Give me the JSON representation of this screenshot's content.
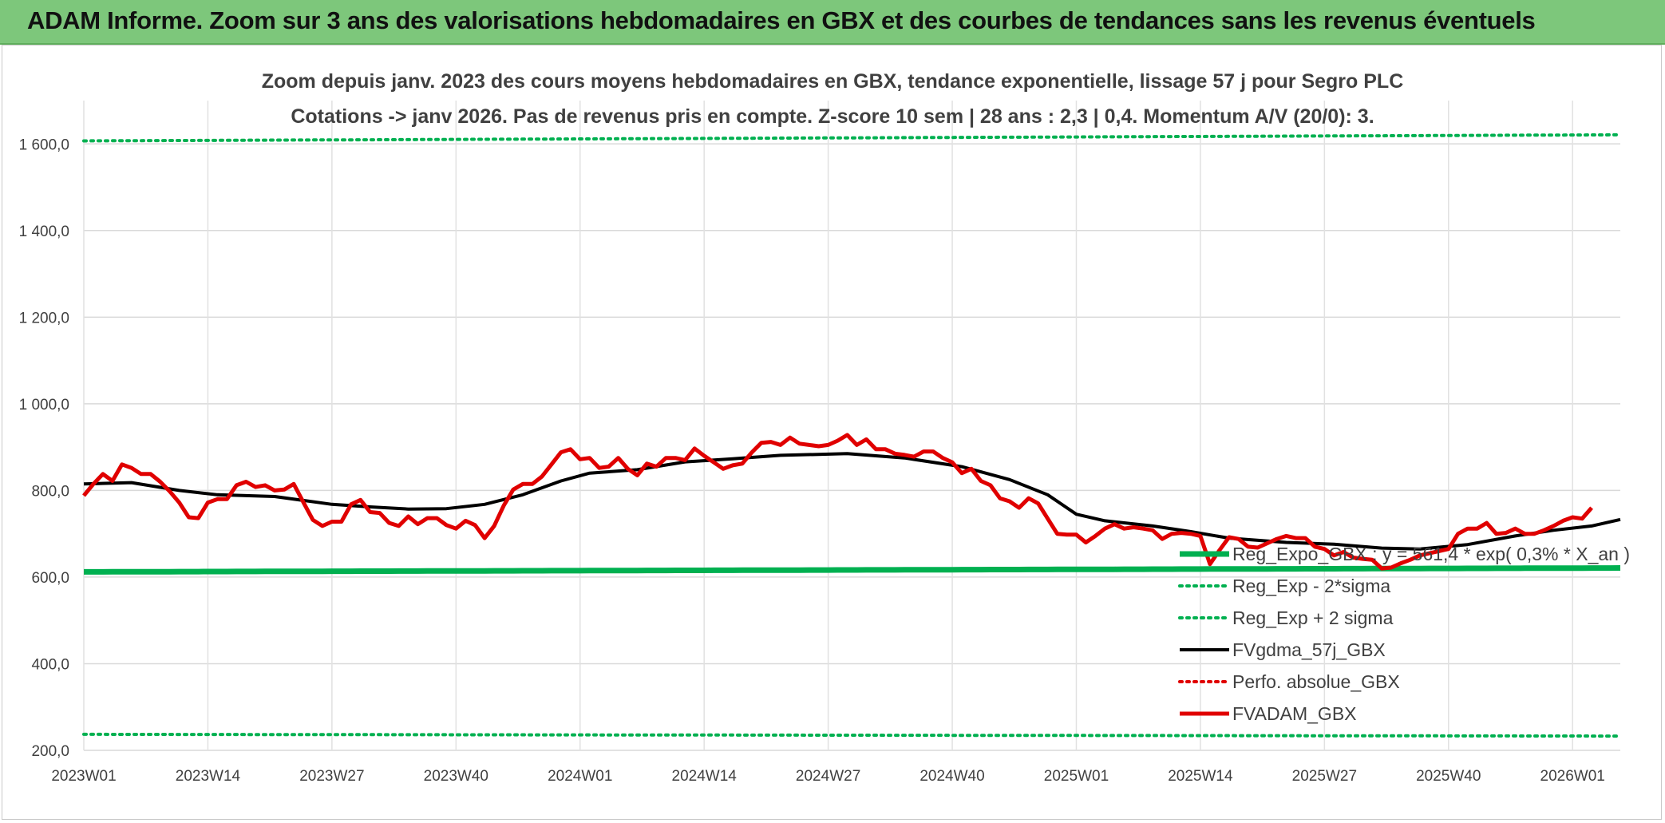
{
  "header": {
    "title": "ADAM Informe. Zoom sur 3 ans des valorisations hebdomadaires en GBX et des courbes de tendances sans les revenus éventuels"
  },
  "chart_data": {
    "type": "line",
    "title_line1": "Zoom depuis janv. 2023 des cours moyens hebdomadaires en GBX, tendance exponentielle, lissage 57 j pour Segro PLC",
    "title_line2": "Cotations -> janv 2026. Pas de revenus pris en compte. Z-score 10 sem | 28 ans : 2,3 | 0,4. Momentum A/V (20/0): 3.",
    "ylim": [
      200,
      1700
    ],
    "y_ticks": [
      200,
      400,
      600,
      800,
      1000,
      1200,
      1400,
      1600
    ],
    "y_tick_labels": [
      "200,0",
      "400,0",
      "600,0",
      "800,0",
      "1 000,0",
      "1 200,0",
      "1 400,0",
      "1 600,0"
    ],
    "x_count": 162,
    "x_tick_index": [
      0,
      13,
      26,
      39,
      52,
      65,
      78,
      91,
      104,
      117,
      130,
      143,
      156
    ],
    "x_tick_labels": [
      "2023W01",
      "2023W14",
      "2023W27",
      "2023W40",
      "2024W01",
      "2024W14",
      "2024W27",
      "2024W40",
      "2025W01",
      "2025W14",
      "2025W27",
      "2025W40",
      "2026W01"
    ],
    "series": [
      {
        "name": "Reg_Expo_GBX : y = 561,4 * exp( 0,3% * X_an )",
        "style": "solid-thick",
        "color": "#00b050",
        "from": 612,
        "to": 621
      },
      {
        "name": "Reg_Exp - 2*sigma",
        "style": "dotted",
        "color": "#00b050",
        "from": 237,
        "to": 233
      },
      {
        "name": "Reg_Exp + 2 sigma",
        "style": "dotted",
        "color": "#00b050",
        "from": 1607,
        "to": 1621
      },
      {
        "name": "FVgdma_57j_GBX",
        "style": "solid",
        "color": "#000000",
        "points": [
          [
            0,
            815
          ],
          [
            5,
            818
          ],
          [
            10,
            800
          ],
          [
            14,
            790
          ],
          [
            20,
            786
          ],
          [
            26,
            768
          ],
          [
            30,
            762
          ],
          [
            34,
            757
          ],
          [
            38,
            758
          ],
          [
            42,
            768
          ],
          [
            46,
            790
          ],
          [
            50,
            822
          ],
          [
            53,
            840
          ],
          [
            58,
            848
          ],
          [
            63,
            866
          ],
          [
            68,
            873
          ],
          [
            73,
            881
          ],
          [
            80,
            885
          ],
          [
            86,
            875
          ],
          [
            92,
            855
          ],
          [
            97,
            825
          ],
          [
            101,
            790
          ],
          [
            104,
            745
          ],
          [
            107,
            730
          ],
          [
            112,
            718
          ],
          [
            116,
            705
          ],
          [
            120,
            690
          ],
          [
            126,
            680
          ],
          [
            131,
            676
          ],
          [
            136,
            667
          ],
          [
            140,
            665
          ],
          [
            145,
            675
          ],
          [
            150,
            695
          ],
          [
            154,
            708
          ],
          [
            158,
            718
          ],
          [
            161,
            733
          ]
        ]
      },
      {
        "name": "Perfo. absolue_GBX",
        "style": "dotted",
        "color": "#e00000",
        "points": []
      },
      {
        "name": "FVADAM_GBX",
        "style": "solid-thick",
        "color": "#e00000",
        "points": [
          [
            0,
            788
          ],
          [
            1,
            815
          ],
          [
            2,
            838
          ],
          [
            3,
            822
          ],
          [
            4,
            860
          ],
          [
            5,
            852
          ],
          [
            6,
            838
          ],
          [
            7,
            838
          ],
          [
            8,
            820
          ],
          [
            9,
            798
          ],
          [
            10,
            772
          ],
          [
            11,
            738
          ],
          [
            12,
            736
          ],
          [
            13,
            772
          ],
          [
            14,
            780
          ],
          [
            15,
            780
          ],
          [
            16,
            812
          ],
          [
            17,
            820
          ],
          [
            18,
            808
          ],
          [
            19,
            812
          ],
          [
            20,
            800
          ],
          [
            21,
            802
          ],
          [
            22,
            815
          ],
          [
            23,
            773
          ],
          [
            24,
            732
          ],
          [
            25,
            718
          ],
          [
            26,
            728
          ],
          [
            27,
            728
          ],
          [
            28,
            768
          ],
          [
            29,
            778
          ],
          [
            30,
            750
          ],
          [
            31,
            748
          ],
          [
            32,
            725
          ],
          [
            33,
            718
          ],
          [
            34,
            740
          ],
          [
            35,
            722
          ],
          [
            36,
            736
          ],
          [
            37,
            736
          ],
          [
            38,
            720
          ],
          [
            39,
            712
          ],
          [
            40,
            730
          ],
          [
            41,
            720
          ],
          [
            42,
            690
          ],
          [
            43,
            718
          ],
          [
            44,
            765
          ],
          [
            45,
            802
          ],
          [
            46,
            815
          ],
          [
            47,
            815
          ],
          [
            48,
            832
          ],
          [
            49,
            860
          ],
          [
            50,
            888
          ],
          [
            51,
            895
          ],
          [
            52,
            872
          ],
          [
            53,
            875
          ],
          [
            54,
            852
          ],
          [
            55,
            855
          ],
          [
            56,
            875
          ],
          [
            57,
            850
          ],
          [
            58,
            835
          ],
          [
            59,
            862
          ],
          [
            60,
            855
          ],
          [
            61,
            875
          ],
          [
            62,
            875
          ],
          [
            63,
            870
          ],
          [
            64,
            897
          ],
          [
            65,
            880
          ],
          [
            66,
            865
          ],
          [
            67,
            850
          ],
          [
            68,
            858
          ],
          [
            69,
            862
          ],
          [
            70,
            888
          ],
          [
            71,
            910
          ],
          [
            72,
            912
          ],
          [
            73,
            905
          ],
          [
            74,
            922
          ],
          [
            75,
            908
          ],
          [
            76,
            905
          ],
          [
            77,
            902
          ],
          [
            78,
            905
          ],
          [
            79,
            915
          ],
          [
            80,
            928
          ],
          [
            81,
            905
          ],
          [
            82,
            918
          ],
          [
            83,
            895
          ],
          [
            84,
            895
          ],
          [
            85,
            885
          ],
          [
            86,
            882
          ],
          [
            87,
            878
          ],
          [
            88,
            890
          ],
          [
            89,
            890
          ],
          [
            90,
            875
          ],
          [
            91,
            865
          ],
          [
            92,
            840
          ],
          [
            93,
            850
          ],
          [
            94,
            822
          ],
          [
            95,
            812
          ],
          [
            96,
            782
          ],
          [
            97,
            775
          ],
          [
            98,
            760
          ],
          [
            99,
            782
          ],
          [
            100,
            770
          ],
          [
            101,
            735
          ],
          [
            102,
            700
          ],
          [
            103,
            698
          ],
          [
            104,
            698
          ],
          [
            105,
            680
          ],
          [
            106,
            695
          ],
          [
            107,
            712
          ],
          [
            108,
            722
          ],
          [
            109,
            712
          ],
          [
            110,
            715
          ],
          [
            111,
            712
          ],
          [
            112,
            708
          ],
          [
            113,
            688
          ],
          [
            114,
            700
          ],
          [
            115,
            702
          ],
          [
            116,
            700
          ],
          [
            117,
            695
          ],
          [
            118,
            630
          ],
          [
            119,
            662
          ],
          [
            120,
            692
          ],
          [
            121,
            688
          ],
          [
            122,
            670
          ],
          [
            123,
            668
          ],
          [
            124,
            678
          ],
          [
            125,
            688
          ],
          [
            126,
            695
          ],
          [
            127,
            690
          ],
          [
            128,
            690
          ],
          [
            129,
            670
          ],
          [
            130,
            665
          ],
          [
            131,
            650
          ],
          [
            132,
            658
          ],
          [
            133,
            645
          ],
          [
            134,
            642
          ],
          [
            135,
            640
          ],
          [
            136,
            620
          ],
          [
            137,
            622
          ],
          [
            138,
            632
          ],
          [
            139,
            640
          ],
          [
            140,
            650
          ],
          [
            141,
            655
          ],
          [
            142,
            660
          ],
          [
            143,
            665
          ],
          [
            144,
            700
          ],
          [
            145,
            712
          ],
          [
            146,
            712
          ],
          [
            147,
            725
          ],
          [
            148,
            700
          ],
          [
            149,
            702
          ],
          [
            150,
            712
          ],
          [
            151,
            700
          ],
          [
            152,
            700
          ],
          [
            153,
            708
          ],
          [
            154,
            718
          ],
          [
            155,
            730
          ],
          [
            156,
            738
          ],
          [
            157,
            735
          ],
          [
            158,
            760
          ]
        ]
      }
    ]
  }
}
